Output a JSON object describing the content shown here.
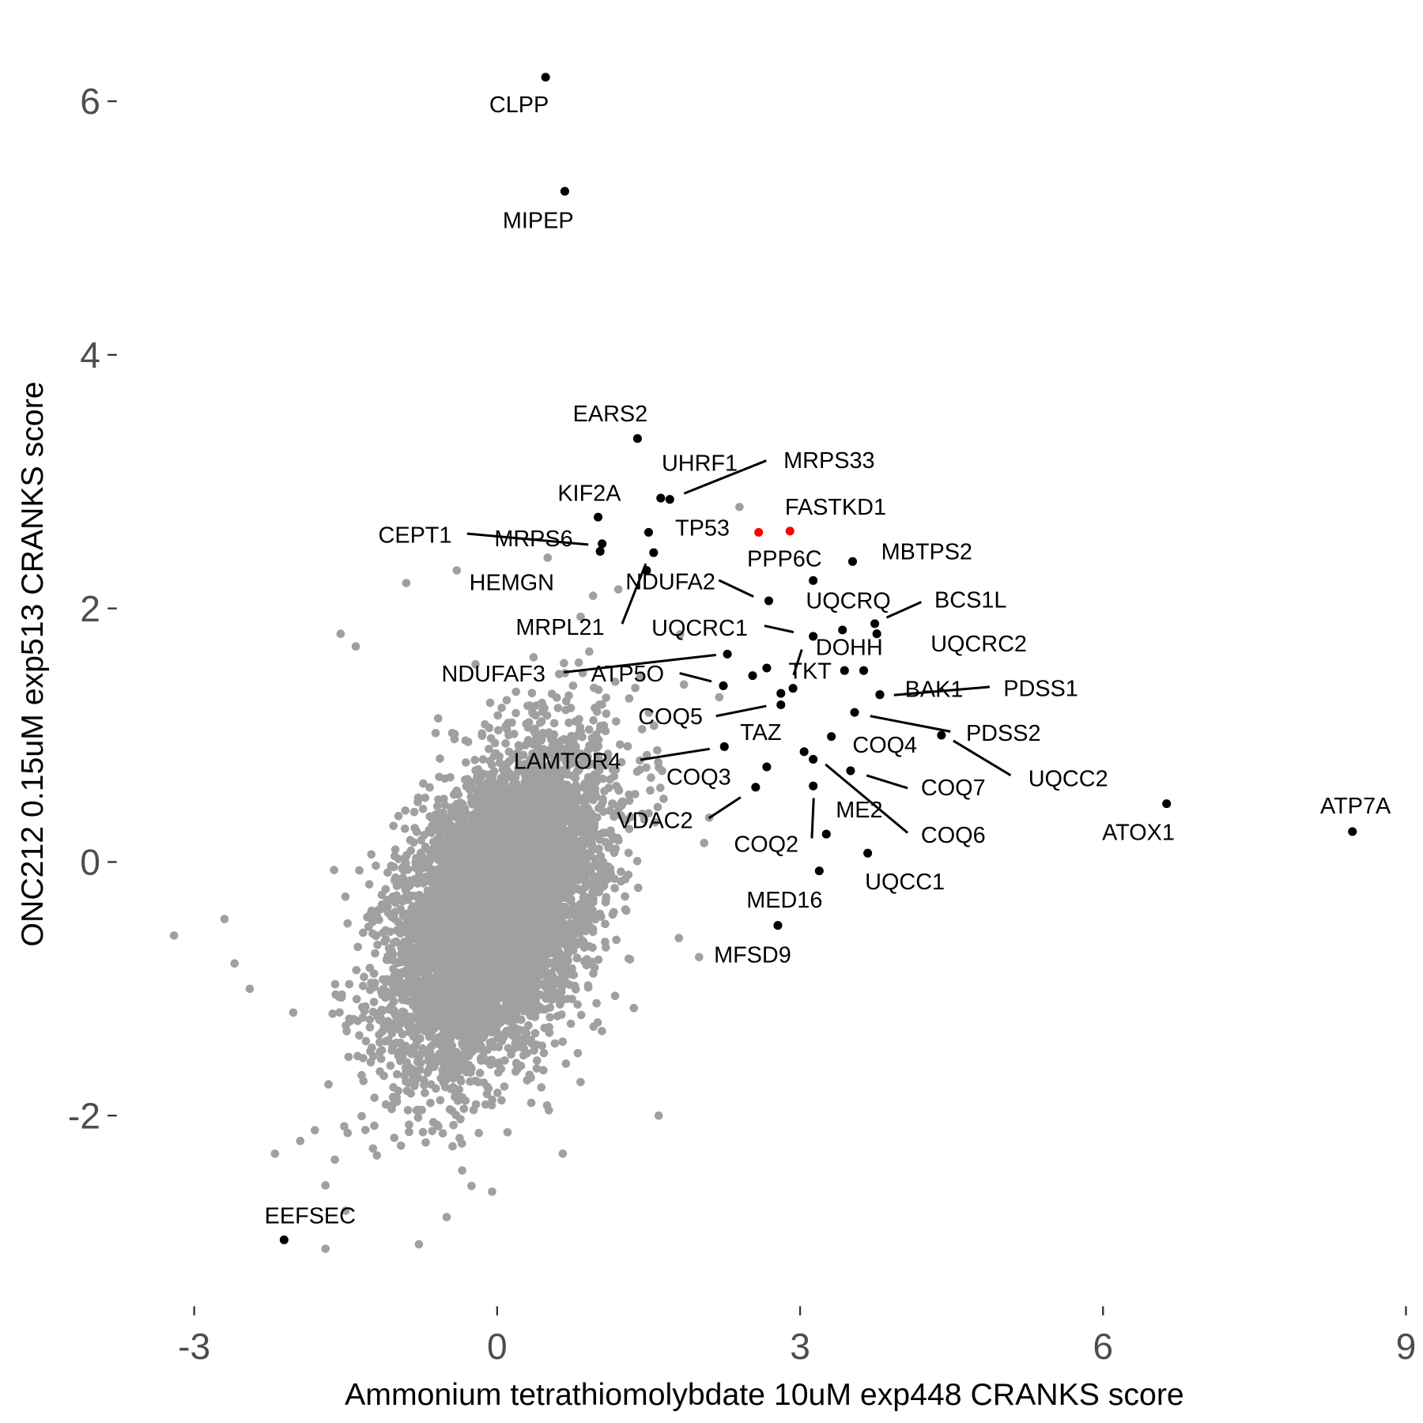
{
  "chart_data": {
    "type": "scatter",
    "xlabel": "Ammonium tetrathiomolybdate 10uM exp448 CRANKS score",
    "ylabel": "ONC212 0.15uM exp513 CRANKS score",
    "xlim": [
      -3.5,
      9
    ],
    "ylim": [
      -3.4,
      6.7
    ],
    "xticks": [
      "-3",
      "0",
      "3",
      "6",
      "9"
    ],
    "yticks": [
      "-2",
      "0",
      "2",
      "4",
      "6"
    ],
    "grid": false,
    "colors": {
      "background_points": "#a0a0a0",
      "labeled_points": "#000000",
      "highlight_points": "#ff0000"
    },
    "background_cloud": {
      "n": 7000,
      "mean": [
        0.0,
        -0.35
      ],
      "sd": [
        0.5,
        0.6
      ],
      "corr": 0.45
    },
    "background_outliers": [
      [
        -3.2,
        -0.58
      ],
      [
        -2.7,
        -0.45
      ],
      [
        -2.6,
        -0.8
      ],
      [
        -2.45,
        -1.0
      ],
      [
        -1.55,
        1.8
      ],
      [
        -1.4,
        1.7
      ],
      [
        -2.2,
        -2.3
      ],
      [
        -1.95,
        -2.2
      ],
      [
        -1.7,
        -2.55
      ],
      [
        -1.5,
        -2.75
      ],
      [
        -0.5,
        -2.8
      ],
      [
        -0.05,
        -2.6
      ],
      [
        0.65,
        -2.3
      ],
      [
        1.6,
        -2.0
      ],
      [
        2.0,
        -0.75
      ],
      [
        1.8,
        -0.6
      ],
      [
        2.4,
        2.8
      ],
      [
        1.2,
        2.15
      ],
      [
        0.95,
        2.1
      ],
      [
        0.5,
        2.4
      ],
      [
        -0.9,
        2.2
      ],
      [
        -0.4,
        2.3
      ],
      [
        2.05,
        0.15
      ],
      [
        2.1,
        0.35
      ],
      [
        1.85,
        1.4
      ],
      [
        2.2,
        1.3
      ],
      [
        -1.7,
        -3.05
      ]
    ],
    "highlight_points": [
      {
        "label": "FASTKD1",
        "x": 2.59,
        "y": 2.6
      },
      {
        "label": "",
        "x": 2.9,
        "y": 2.61
      }
    ],
    "labeled_points": [
      {
        "label": "CLPP",
        "x": 0.48,
        "y": 6.19
      },
      {
        "label": "MIPEP",
        "x": 0.67,
        "y": 5.29
      },
      {
        "label": "EARS2",
        "x": 1.39,
        "y": 3.34
      },
      {
        "label": "UHRF1",
        "x": 1.62,
        "y": 2.87
      },
      {
        "label": "MRPS33",
        "x": 1.71,
        "y": 2.86
      },
      {
        "label": "KIF2A",
        "x": 1.0,
        "y": 2.72
      },
      {
        "label": "TP53",
        "x": 1.5,
        "y": 2.6
      },
      {
        "label": "CEPT1",
        "x": 1.04,
        "y": 2.51
      },
      {
        "label": "MRPS6",
        "x": 1.02,
        "y": 2.45
      },
      {
        "label": "HEMGN",
        "x": 1.55,
        "y": 2.44
      },
      {
        "label": "MBTPS2",
        "x": 3.52,
        "y": 2.37
      },
      {
        "label": "PPP6C",
        "x": 3.13,
        "y": 2.22
      },
      {
        "label": "NDUFA2",
        "x": 2.69,
        "y": 2.06
      },
      {
        "label": "MRPL21",
        "x": 1.48,
        "y": 2.3
      },
      {
        "label": "UQCRQ",
        "x": 3.42,
        "y": 1.83
      },
      {
        "label": "BCS1L",
        "x": 3.74,
        "y": 1.88
      },
      {
        "label": "UQCRC2",
        "x": 3.76,
        "y": 1.8
      },
      {
        "label": "UQCRC1",
        "x": 3.13,
        "y": 1.78
      },
      {
        "label": "NDUFAF3",
        "x": 2.28,
        "y": 1.64
      },
      {
        "label": "DOHH",
        "x": 2.67,
        "y": 1.53
      },
      {
        "label": "",
        "x": 2.53,
        "y": 1.47
      },
      {
        "label": "ATP5O",
        "x": 2.24,
        "y": 1.39
      },
      {
        "label": "TKT",
        "x": 3.44,
        "y": 1.51
      },
      {
        "label": "",
        "x": 3.63,
        "y": 1.51
      },
      {
        "label": "",
        "x": 2.93,
        "y": 1.37
      },
      {
        "label": "",
        "x": 2.81,
        "y": 1.33
      },
      {
        "label": "COQ5",
        "x": 2.81,
        "y": 1.24
      },
      {
        "label": "BAK1",
        "x": 3.79,
        "y": 1.32
      },
      {
        "label": "PDSS1",
        "x": 3.79,
        "y": 1.32
      },
      {
        "label": "PDSS2",
        "x": 3.54,
        "y": 1.18
      },
      {
        "label": "UQCC2",
        "x": 4.4,
        "y": 1.0
      },
      {
        "label": "COQ4",
        "x": 3.31,
        "y": 0.99
      },
      {
        "label": "LAMTOR4",
        "x": 2.25,
        "y": 0.91
      },
      {
        "label": "TAZ",
        "x": 3.04,
        "y": 0.87
      },
      {
        "label": "COQ6",
        "x": 3.13,
        "y": 0.81
      },
      {
        "label": "COQ3",
        "x": 2.67,
        "y": 0.75
      },
      {
        "label": "COQ7",
        "x": 3.5,
        "y": 0.72
      },
      {
        "label": "VDAC2",
        "x": 2.56,
        "y": 0.59
      },
      {
        "label": "COQ2",
        "x": 3.13,
        "y": 0.6
      },
      {
        "label": "ME2",
        "x": 3.26,
        "y": 0.22
      },
      {
        "label": "UQCC1",
        "x": 3.67,
        "y": 0.07
      },
      {
        "label": "MED16",
        "x": 3.19,
        "y": -0.07
      },
      {
        "label": "MFSD9",
        "x": 2.78,
        "y": -0.5
      },
      {
        "label": "ATOX1",
        "x": 6.63,
        "y": 0.46
      },
      {
        "label": "ATP7A",
        "x": 8.47,
        "y": 0.24
      },
      {
        "label": "EEFSEC",
        "x": -2.11,
        "y": -2.98
      }
    ]
  }
}
